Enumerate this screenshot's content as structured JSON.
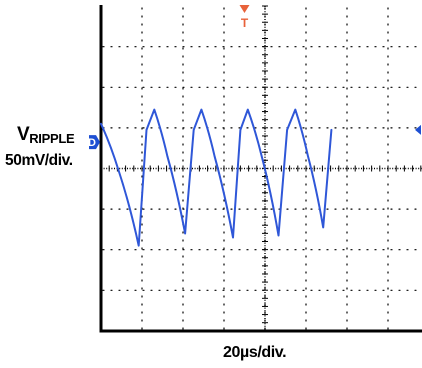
{
  "chart_data": {
    "type": "line",
    "title": "",
    "ylabel_main": "V",
    "ylabel_sub": "RIPPLE",
    "ylabel_scale": "50mV/div.",
    "xlabel": "20µs/div.",
    "x_unit": "divisions",
    "y_unit": "divisions",
    "xlim": [
      0,
      8
    ],
    "ylim": [
      -4,
      4
    ],
    "grid": true,
    "markers": {
      "channel": "D",
      "trigger": "T"
    },
    "colors": {
      "trace": "#2f57d8",
      "trigger": "#e8623a",
      "channel_marker": "#1d4fd3",
      "grid": "#000000"
    },
    "series": [
      {
        "values": [
          [
            0.0,
            1.1
          ],
          [
            0.43,
            -0.05
          ],
          [
            0.92,
            -1.9
          ],
          [
            1.11,
            0.95
          ],
          [
            1.3,
            1.45
          ],
          [
            1.62,
            0.3
          ],
          [
            2.05,
            -1.6
          ],
          [
            2.26,
            0.95
          ],
          [
            2.45,
            1.45
          ],
          [
            2.77,
            0.3
          ],
          [
            3.22,
            -1.7
          ],
          [
            3.4,
            0.95
          ],
          [
            3.58,
            1.45
          ],
          [
            3.92,
            0.3
          ],
          [
            4.33,
            -1.65
          ],
          [
            4.54,
            0.95
          ],
          [
            4.74,
            1.45
          ],
          [
            5.05,
            0.3
          ],
          [
            5.42,
            -1.45
          ],
          [
            5.62,
            0.95
          ]
        ]
      }
    ]
  }
}
